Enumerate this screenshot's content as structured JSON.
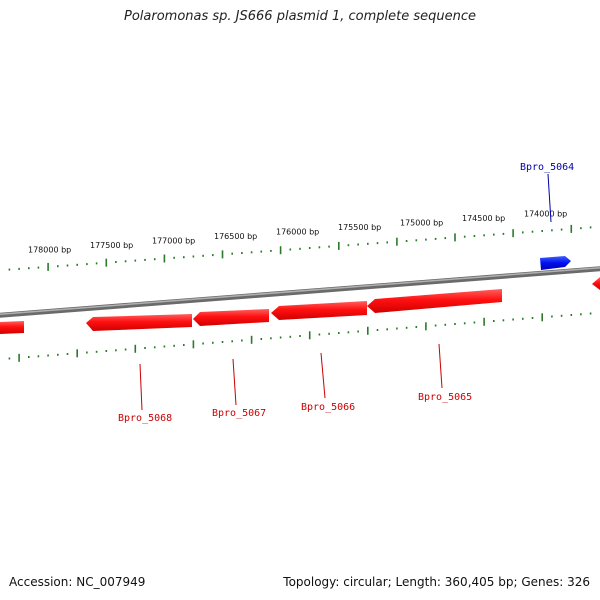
{
  "header": {
    "title": "Polaromonas sp. JS666 plasmid 1, complete sequence"
  },
  "footer": {
    "accession": "Accession: NC_007949",
    "summary": "Topology: circular; Length: 360,405 bp; Genes: 326"
  },
  "colors": {
    "forward_gene": "#0000ee",
    "reverse_gene": "#ff0000",
    "reverse_label": "#cc0000",
    "forward_label": "#0000aa",
    "ticks": "#2a7a2a",
    "backbone": "#8a8a8a"
  },
  "ruler": {
    "labels": [
      "178000 bp",
      "177500 bp",
      "177000 bp",
      "176500 bp",
      "176000 bp",
      "175500 bp",
      "175000 bp",
      "174500 bp",
      "174000 bp"
    ]
  },
  "genes": [
    {
      "name": "Bpro_5064",
      "strand": "forward"
    },
    {
      "name": "Bpro_5065",
      "strand": "reverse"
    },
    {
      "name": "Bpro_5066",
      "strand": "reverse"
    },
    {
      "name": "Bpro_5067",
      "strand": "reverse"
    },
    {
      "name": "Bpro_5068",
      "strand": "reverse"
    }
  ]
}
